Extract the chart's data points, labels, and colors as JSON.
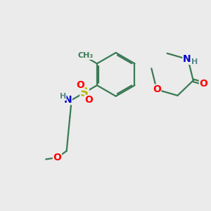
{
  "bg_color": "#ebebeb",
  "bond_color": "#3a7a55",
  "bond_width": 1.6,
  "dbo": 0.055,
  "atom_colors": {
    "O": "#ff0000",
    "N": "#0000cc",
    "S": "#b8b800",
    "H": "#558888",
    "C": "#3a7a55"
  },
  "fs_large": 10,
  "fs_med": 9,
  "fs_small": 8
}
